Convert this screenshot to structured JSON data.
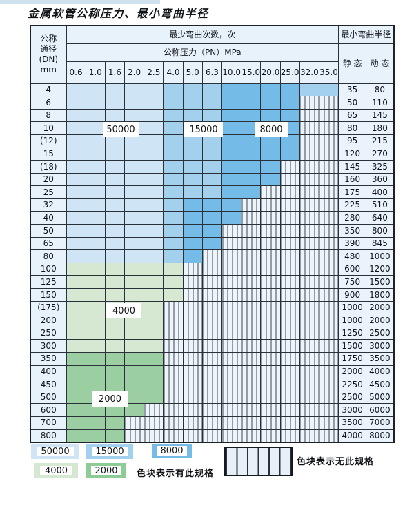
{
  "title": "金属软管公称压力、最小弯曲半径",
  "colors": {
    "band_50000": "#cfe5f5",
    "band_15000": "#a2d0ed",
    "band_8000": "#74bce7",
    "band_4000": "#d6e8d2",
    "band_2000": "#9bcfa2",
    "header_bg": "#e8f2fa",
    "hatch_bg": "#eef4fb",
    "grid_line": "#2a3138"
  },
  "chart_data": {
    "type": "table",
    "header": {
      "dn_label_lines": [
        "公称",
        "通径",
        "(DN)",
        "mm"
      ],
      "cycles_label": "最少弯曲次数，次",
      "pressure_label": "公称压力（PN）MPa",
      "pressure_columns": [
        "0.6",
        "1.0",
        "1.6",
        "2.0",
        "2.5",
        "4.0",
        "5.0",
        "6.3",
        "10.0",
        "15.0",
        "20.0",
        "25.0",
        "32.0",
        "35.0"
      ],
      "radius_label": "最小弯曲半径",
      "static_label": "静 态",
      "dynamic_label": "动 态"
    },
    "cell_code_meaning": {
      "1": "50000 cycles (lightest blue)",
      "2": "15000 cycles (medium blue)",
      "3": "8000 cycles (dark blue)",
      "4": "4000 cycles (light green)",
      "5": "2000 cycles (medium green)",
      "x": "no such specification (hatched)"
    },
    "band_labels": [
      {
        "text": "50000"
      },
      {
        "text": "15000"
      },
      {
        "text": "8000"
      },
      {
        "text": "4000"
      },
      {
        "text": "2000"
      }
    ],
    "rows": [
      {
        "dn": "4",
        "cells": "11111222333322",
        "static": "35",
        "dynamic": "80"
      },
      {
        "dn": "6",
        "cells": "111112223333xx",
        "static": "50",
        "dynamic": "110"
      },
      {
        "dn": "8",
        "cells": "111112223333xx",
        "static": "65",
        "dynamic": "145"
      },
      {
        "dn": "10",
        "cells": "111112223333xx",
        "static": "80",
        "dynamic": "180"
      },
      {
        "dn": "(12)",
        "cells": "111112223333xx",
        "static": "95",
        "dynamic": "215"
      },
      {
        "dn": "15",
        "cells": "111112223333xx",
        "static": "120",
        "dynamic": "270"
      },
      {
        "dn": "(18)",
        "cells": "11111222333xxx",
        "static": "145",
        "dynamic": "325"
      },
      {
        "dn": "20",
        "cells": "11111222333xxx",
        "static": "160",
        "dynamic": "360"
      },
      {
        "dn": "25",
        "cells": "1111122233xxxx",
        "static": "175",
        "dynamic": "400"
      },
      {
        "dn": "32",
        "cells": "111112333xxxxx",
        "static": "225",
        "dynamic": "510"
      },
      {
        "dn": "40",
        "cells": "111112333xxxxx",
        "static": "280",
        "dynamic": "640"
      },
      {
        "dn": "50",
        "cells": "11111233xxxxxx",
        "static": "350",
        "dynamic": "800"
      },
      {
        "dn": "65",
        "cells": "11111233xxxxxx",
        "static": "390",
        "dynamic": "845"
      },
      {
        "dn": "80",
        "cells": "1111123xxxxxxx",
        "static": "480",
        "dynamic": "1000"
      },
      {
        "dn": "100",
        "cells": "444444xxxxxxxx",
        "static": "600",
        "dynamic": "1200"
      },
      {
        "dn": "125",
        "cells": "444444xxxxxxxx",
        "static": "750",
        "dynamic": "1500"
      },
      {
        "dn": "150",
        "cells": "444444xxxxxxxx",
        "static": "900",
        "dynamic": "1800"
      },
      {
        "dn": "(175)",
        "cells": "44444xxxxxxxxx",
        "static": "1000",
        "dynamic": "2000"
      },
      {
        "dn": "200",
        "cells": "44444xxxxxxxxx",
        "static": "1000",
        "dynamic": "2000"
      },
      {
        "dn": "250",
        "cells": "44444xxxxxxxxx",
        "static": "1250",
        "dynamic": "2500"
      },
      {
        "dn": "300",
        "cells": "44444xxxxxxxxx",
        "static": "1500",
        "dynamic": "3000"
      },
      {
        "dn": "350",
        "cells": "55555xxxxxxxxx",
        "static": "1750",
        "dynamic": "3500"
      },
      {
        "dn": "400",
        "cells": "55555xxxxxxxxx",
        "static": "2000",
        "dynamic": "4000"
      },
      {
        "dn": "450",
        "cells": "55555xxxxxxxxx",
        "static": "2250",
        "dynamic": "4500"
      },
      {
        "dn": "500",
        "cells": "55555xxxxxxxxx",
        "static": "2500",
        "dynamic": "5000"
      },
      {
        "dn": "600",
        "cells": "5555xxxxxxxxxx",
        "static": "3000",
        "dynamic": "6000"
      },
      {
        "dn": "700",
        "cells": "555xxxxxxxxxxx",
        "static": "3500",
        "dynamic": "7000"
      },
      {
        "dn": "800",
        "cells": "555xxxxxxxxxxx",
        "static": "4000",
        "dynamic": "8000"
      }
    ]
  },
  "legend": {
    "present_blocks": [
      {
        "label": "50000"
      },
      {
        "label": "15000"
      },
      {
        "label": "8000"
      },
      {
        "label": "4000"
      },
      {
        "label": "2000"
      }
    ],
    "present_text": "色块表示有此规格",
    "absent_text": "色块表示无此规格"
  }
}
